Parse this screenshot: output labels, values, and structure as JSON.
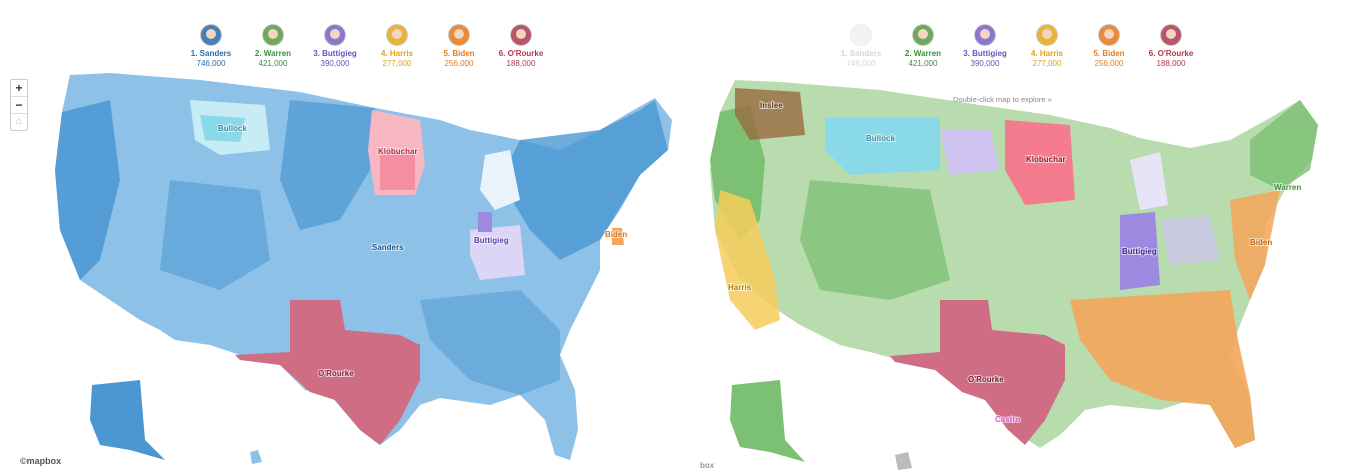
{
  "candidates": [
    {
      "rank_name": "1. Sanders",
      "votes": "746,000",
      "color": "#2a6bb0"
    },
    {
      "rank_name": "2. Warren",
      "votes": "421,000",
      "color": "#3d8f3d"
    },
    {
      "rank_name": "3. Buttigieg",
      "votes": "390,000",
      "color": "#6a50c2"
    },
    {
      "rank_name": "4. Harris",
      "votes": "277,000",
      "color": "#e0a021"
    },
    {
      "rank_name": "5. Biden",
      "votes": "256,000",
      "color": "#e27d1f"
    },
    {
      "rank_name": "6. O'Rourke",
      "votes": "188,000",
      "color": "#b23650"
    }
  ],
  "map_controls": {
    "zoom_in": "+",
    "zoom_out": "−",
    "home": "⌂"
  },
  "right_hint": "Double-click map to explore »",
  "left_labels": {
    "bullock": "Bullock",
    "klobuchar": "Klobuchar",
    "sanders": "Sanders",
    "buttigieg": "Buttigieg",
    "biden": "Biden",
    "orourke": "O'Rourke"
  },
  "right_labels": {
    "inslee": "Inslee",
    "bullock": "Bullock",
    "klobuchar": "Klobuchar",
    "warren": "Warren",
    "buttigieg": "Buttigieg",
    "biden": "Biden",
    "harris": "Harris",
    "orourke": "O'Rourke",
    "castro": "Castro"
  },
  "attribution": {
    "left": "©mapbox",
    "right": "box"
  },
  "colors": {
    "sanders": "#4a97d2",
    "warren": "#7cc073",
    "buttigieg": "#9c8ae0",
    "harris": "#f6cc5a",
    "biden": "#f4a55b",
    "orourke": "#cf6d84",
    "klobuchar": "#f47c8e",
    "bullock": "#8ad9e8",
    "inslee": "#9a6a3e",
    "castro": "#e055d8"
  }
}
